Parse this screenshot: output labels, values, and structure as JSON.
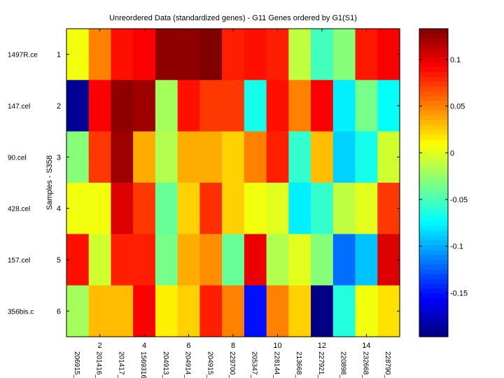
{
  "chart_data": {
    "type": "heatmap",
    "title": "Unreordered Data (standardized genes) - G11 Genes ordered by G1(S1)",
    "xlabel": "",
    "ylabel": "Samples - S358",
    "colormap": "jet",
    "clim": [
      -0.197,
      0.133
    ],
    "row_labels": [
      "1497R.ce",
      "147.cel",
      "90.cel",
      "428.cel",
      "157.cel",
      "356bis.c"
    ],
    "row_ticks": [
      "1",
      "2",
      "3",
      "4",
      "5",
      "6"
    ],
    "col_labels": [
      "206915_",
      "201416_",
      "201417_",
      "1569316",
      "204913_",
      "204914_",
      "204915_",
      "229700_",
      "205347_",
      "228144_",
      "213668_",
      "227921_",
      "220898_",
      "232668_",
      "228790_"
    ],
    "col_ticks": [
      {
        "index": 2,
        "label": "2"
      },
      {
        "index": 4,
        "label": "4"
      },
      {
        "index": 6,
        "label": "6"
      },
      {
        "index": 8,
        "label": "8"
      },
      {
        "index": 10,
        "label": "10"
      },
      {
        "index": 12,
        "label": "12"
      },
      {
        "index": 14,
        "label": "14"
      }
    ],
    "values": [
      [
        0.005,
        0.05,
        0.087,
        0.093,
        0.128,
        0.128,
        0.133,
        0.082,
        0.087,
        0.082,
        -0.011,
        -0.052,
        -0.03,
        0.084,
        0.093
      ],
      [
        -0.19,
        0.093,
        0.128,
        0.123,
        -0.02,
        0.087,
        0.074,
        0.074,
        -0.067,
        0.087,
        0.05,
        0.093,
        -0.078,
        -0.035,
        -0.072
      ],
      [
        -0.03,
        0.074,
        0.123,
        0.036,
        -0.016,
        0.036,
        0.036,
        0.024,
        0.05,
        0.082,
        -0.057,
        0.031,
        -0.088,
        -0.067,
        -0.006
      ],
      [
        0.005,
        0.005,
        0.103,
        0.074,
        -0.04,
        0.024,
        0.077,
        0.024,
        0.005,
        0.0,
        -0.078,
        -0.057,
        -0.011,
        0.0,
        0.074
      ],
      [
        0.087,
        -0.006,
        0.082,
        0.082,
        -0.035,
        0.036,
        0.046,
        -0.04,
        0.097,
        -0.016,
        0.0,
        -0.03,
        -0.12,
        -0.093,
        0.103
      ],
      [
        -0.02,
        0.031,
        0.031,
        0.093,
        0.014,
        0.024,
        0.082,
        0.05,
        -0.151,
        0.05,
        0.024,
        -0.195,
        -0.062,
        0.005,
        0.019
      ]
    ],
    "colorbar": {
      "ticks": [
        {
          "value": 0.1,
          "label": "0.1"
        },
        {
          "value": 0.05,
          "label": "0.05"
        },
        {
          "value": 0,
          "label": "0"
        },
        {
          "value": -0.05,
          "label": "-0.05"
        },
        {
          "value": -0.1,
          "label": "-0.1"
        },
        {
          "value": -0.15,
          "label": "-0.15"
        }
      ]
    }
  }
}
